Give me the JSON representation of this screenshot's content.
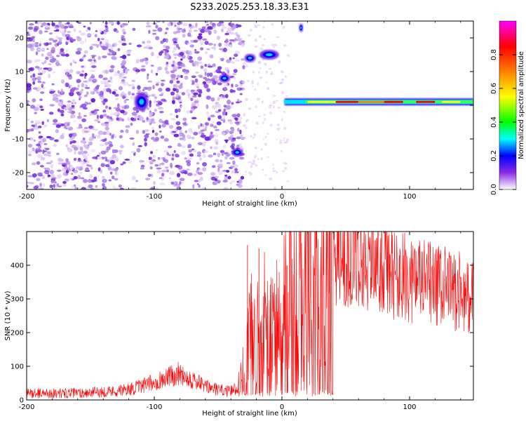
{
  "title": "S233.2025.253.18.33.E31",
  "chart_data": [
    {
      "type": "heatmap",
      "name": "spectrogram",
      "xlabel": "Height of straight line (km)",
      "ylabel": "Frequency (Hz)",
      "xlim": [
        -200,
        150
      ],
      "ylim": [
        -25,
        25
      ],
      "xticks": [
        -200,
        -100,
        0,
        100
      ],
      "xtick_labels": [
        "-200",
        "-100",
        "0",
        "100"
      ],
      "yticks": [
        -20,
        -10,
        0,
        10,
        20
      ],
      "ytick_labels": [
        "-20",
        "-10",
        "0",
        "10",
        "20"
      ],
      "colorbar": {
        "label": "Normalized spectral amplitude",
        "range": [
          0,
          1
        ],
        "ticks": [
          0.0,
          0.2,
          0.4,
          0.6,
          0.8
        ],
        "tick_labels": [
          "0.0",
          "0.2",
          "0.4",
          "0.6",
          "0.8"
        ],
        "colormap": [
          "#ffffff",
          "#8a2be2",
          "#0000ff",
          "#00ffff",
          "#00ff00",
          "#ffff00",
          "#ff8000",
          "#ff0000",
          "#ff00ff"
        ]
      },
      "features": [
        {
          "label": "carrier",
          "x_range": [
            2,
            150
          ],
          "frequency": 1,
          "peak_amplitude": 0.95
        },
        {
          "label": "blob",
          "x": -110,
          "frequency": 1,
          "amplitude": 0.35
        },
        {
          "label": "blob",
          "x": -45,
          "frequency": 8,
          "amplitude": 0.3
        },
        {
          "label": "blob",
          "x": -35,
          "frequency": -14,
          "amplitude": 0.35
        },
        {
          "label": "blob",
          "x": -25,
          "frequency": 14,
          "amplitude": 0.4
        },
        {
          "label": "blob",
          "x": -10,
          "frequency": 15,
          "amplitude": 0.35
        },
        {
          "label": "blob",
          "x": 15,
          "frequency": 23,
          "amplitude": 0.2
        },
        {
          "label": "noise",
          "x_range": [
            -200,
            -30
          ],
          "frequency_range": [
            -25,
            25
          ],
          "amplitude": 0.08
        }
      ]
    },
    {
      "type": "line",
      "name": "snr",
      "xlabel": "Height of straight line (km)",
      "ylabel": "SNR (10 * v/v)",
      "xlim": [
        -200,
        150
      ],
      "ylim": [
        0,
        500
      ],
      "xticks": [
        -200,
        -100,
        0,
        100
      ],
      "xtick_labels": [
        "-200",
        "-100",
        "0",
        "100"
      ],
      "yticks": [
        0,
        100,
        200,
        300,
        400
      ],
      "ytick_labels": [
        "0",
        "100",
        "200",
        "300",
        "400"
      ],
      "color": "#ff0000",
      "x": [
        -200,
        -175,
        -150,
        -125,
        -110,
        -95,
        -80,
        -70,
        -60,
        -50,
        -40,
        -35,
        -30,
        -25,
        -20,
        -15,
        -10,
        -5,
        0,
        5,
        10,
        15,
        20,
        25,
        30,
        40,
        50,
        60,
        70,
        80,
        90,
        100,
        110,
        120,
        130,
        140,
        150
      ],
      "y": [
        20,
        20,
        22,
        28,
        40,
        60,
        80,
        60,
        40,
        30,
        25,
        40,
        150,
        220,
        170,
        250,
        180,
        230,
        250,
        310,
        330,
        360,
        390,
        410,
        420,
        430,
        430,
        420,
        410,
        390,
        370,
        360,
        350,
        340,
        330,
        320,
        300
      ],
      "spikes": [
        {
          "x": -27,
          "y": 460
        },
        {
          "x": -18,
          "y": 450
        },
        {
          "x": 4,
          "y": 400
        },
        {
          "x": 37,
          "y": 440
        },
        {
          "x": 40,
          "y": 15
        }
      ]
    }
  ]
}
